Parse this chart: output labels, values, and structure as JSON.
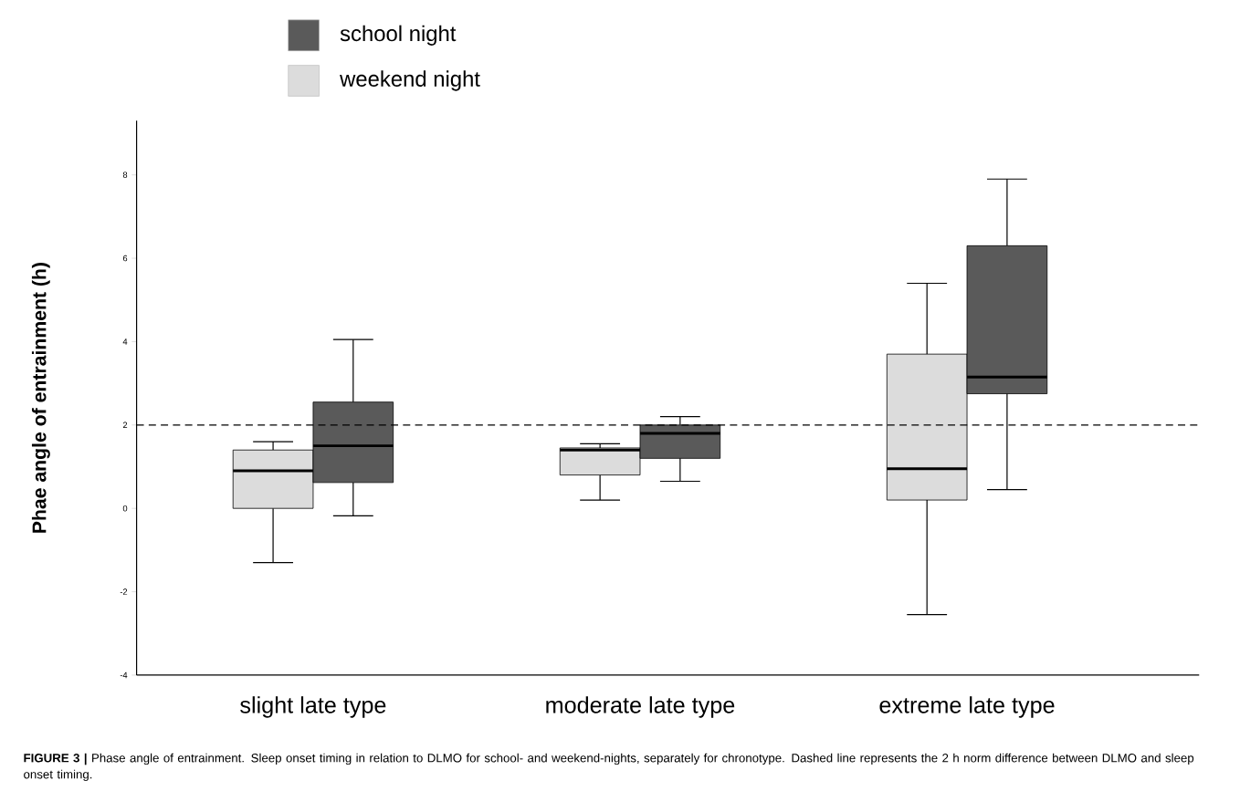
{
  "chart_data": {
    "type": "box",
    "categories": [
      "slight late type",
      "moderate late type",
      "extreme late type"
    ],
    "ylabel": "Phae angle of entrainment (h)",
    "ylim": [
      -4,
      9.3
    ],
    "yticks": [
      -4,
      -2,
      0,
      2,
      4,
      6,
      8
    ],
    "legend": "top",
    "ref_lines": [
      {
        "axis": "y",
        "value": 2,
        "line_style": "dashed"
      }
    ],
    "series": [
      {
        "name": "weekend night",
        "color": "#dcdcdc",
        "boxes": [
          {
            "low": -1.3,
            "q1": 0.0,
            "median": 0.9,
            "q3": 1.4,
            "high": 1.6
          },
          {
            "low": 0.2,
            "q1": 0.8,
            "median": 1.4,
            "q3": 1.45,
            "high": 1.55
          },
          {
            "low": -2.55,
            "q1": 0.2,
            "median": 0.95,
            "q3": 3.7,
            "high": 5.4
          }
        ]
      },
      {
        "name": "school night",
        "color": "#5a5a5a",
        "boxes": [
          {
            "low": -0.18,
            "q1": 0.62,
            "median": 1.5,
            "q3": 2.55,
            "high": 4.05
          },
          {
            "low": 0.65,
            "q1": 1.2,
            "median": 1.8,
            "q3": 2.0,
            "high": 2.2
          },
          {
            "low": 0.45,
            "q1": 2.75,
            "median": 3.15,
            "q3": 6.3,
            "high": 7.9
          }
        ]
      }
    ],
    "annotations": [
      "**FIGURE 3 |** Phase angle of entrainment. Sleep onset timing in relation to DLMO for school- and weekend-nights, separately for chronotype. Dashed line represents the 2 h norm difference between DLMO and sleep onset timing."
    ]
  }
}
